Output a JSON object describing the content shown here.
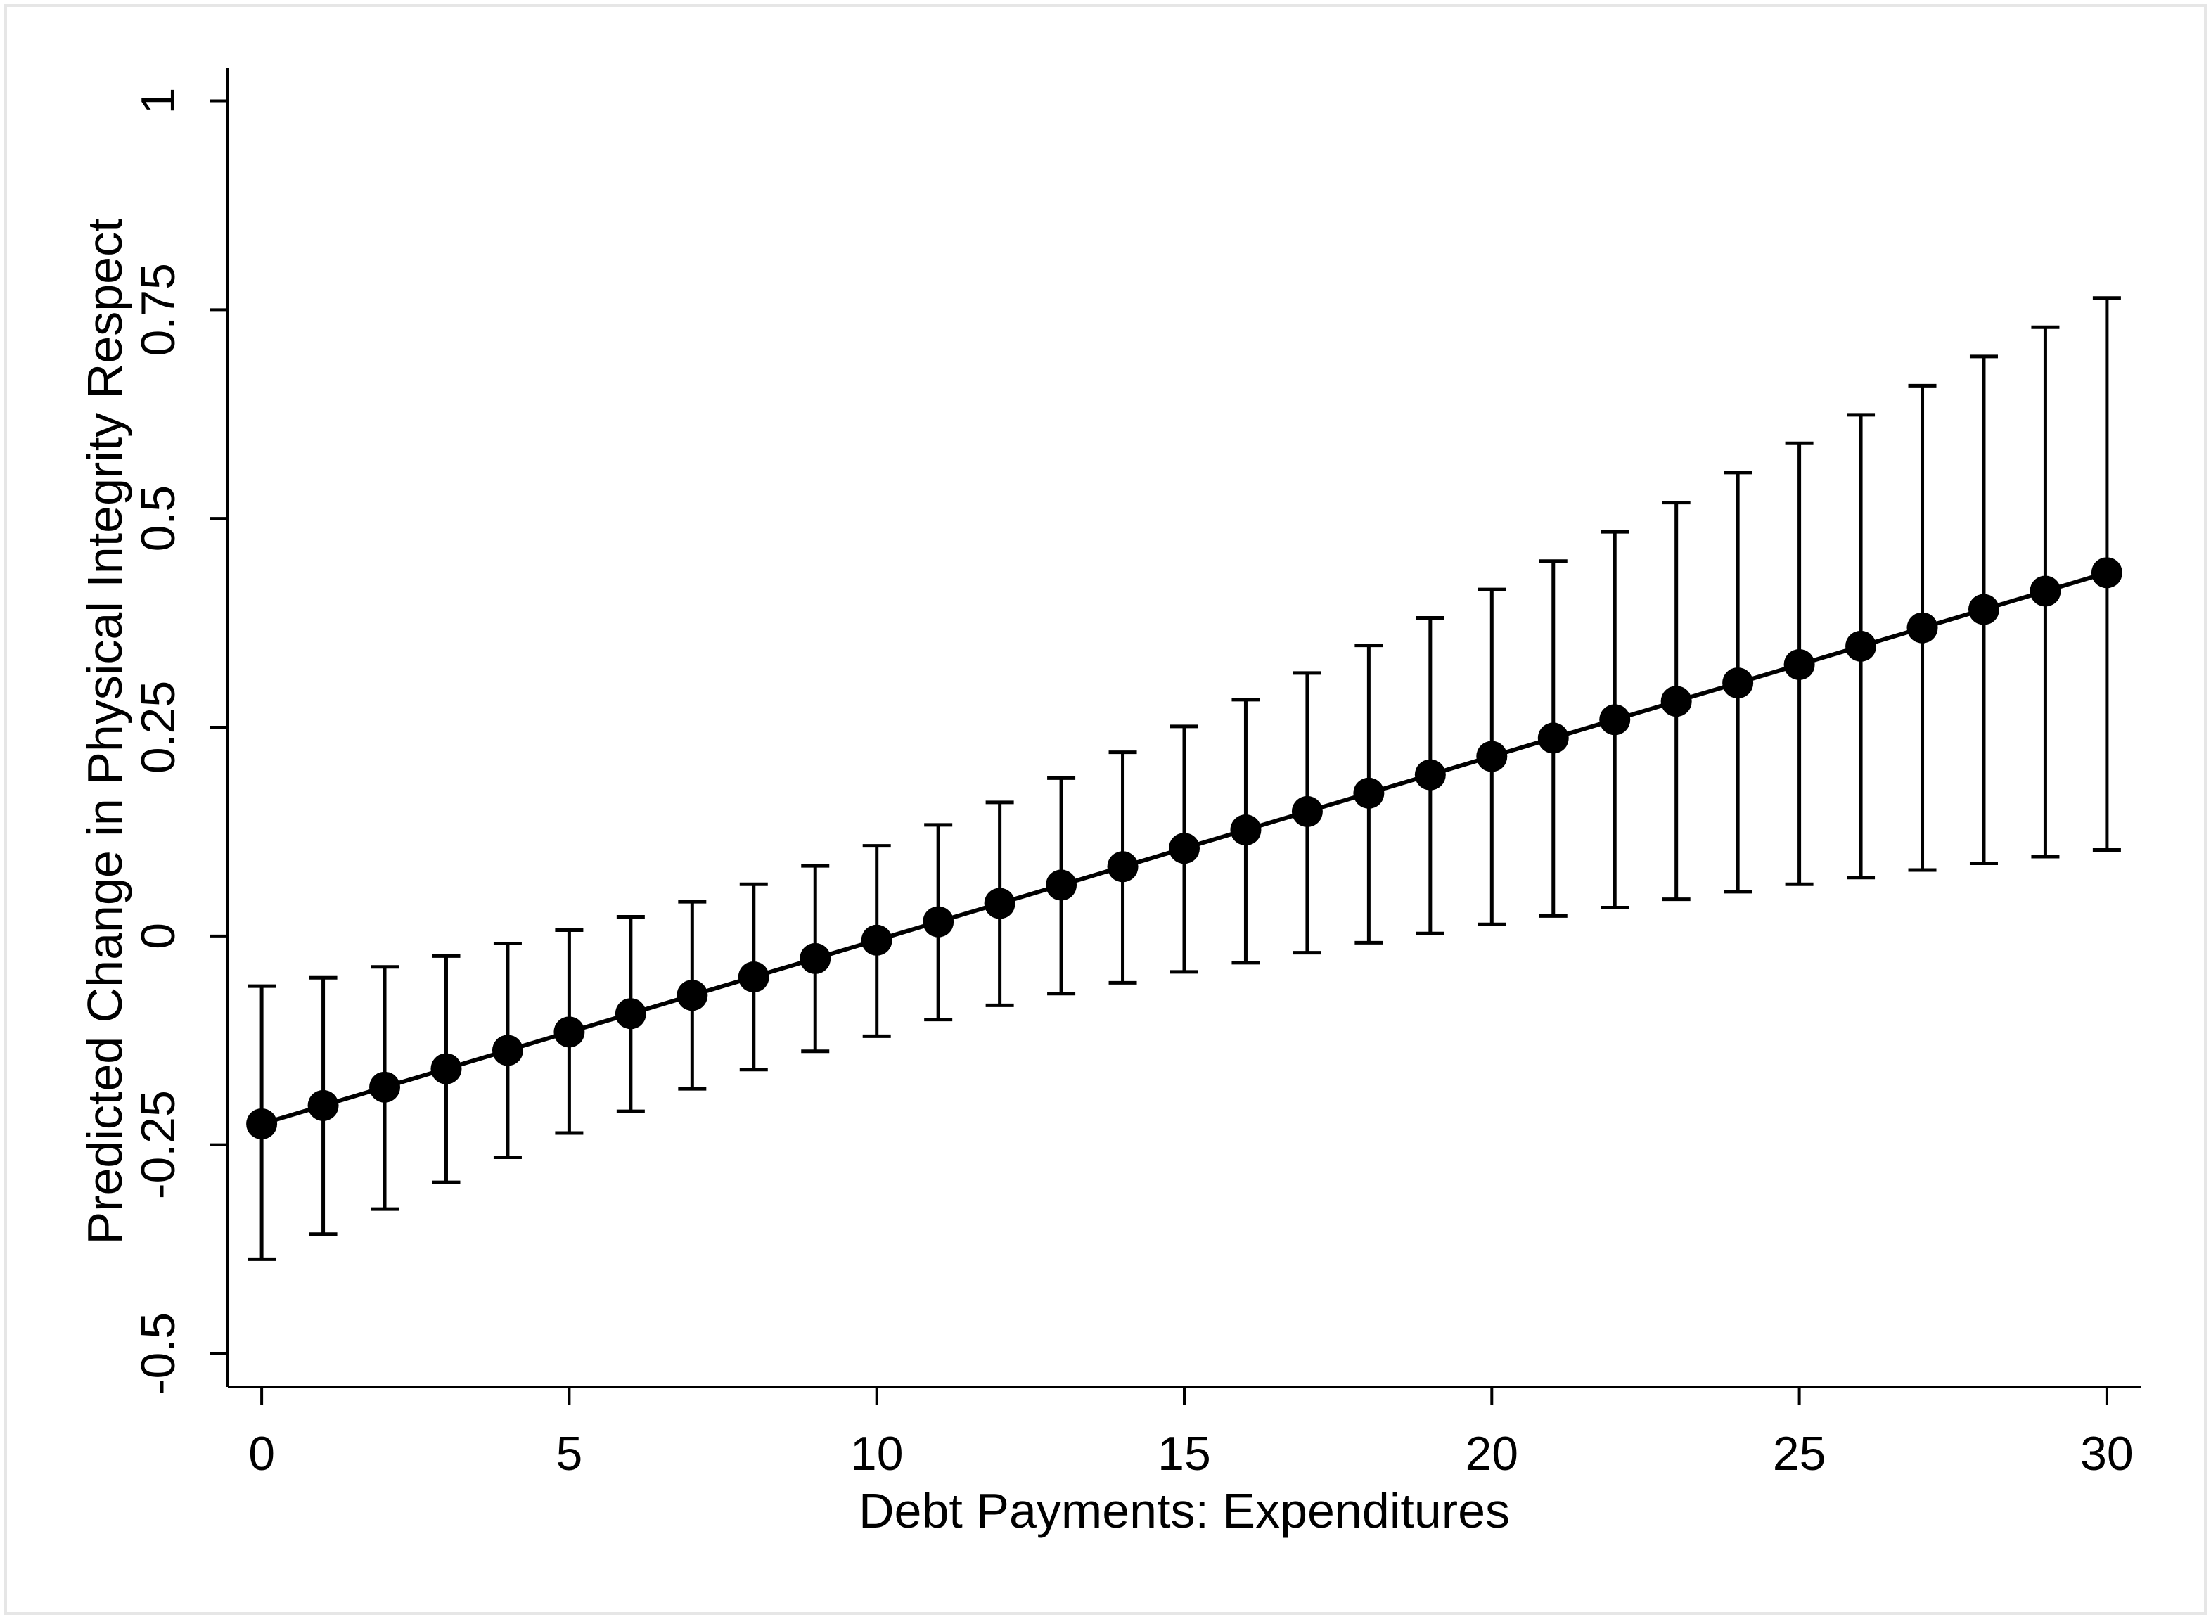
{
  "chart_data": {
    "type": "scatter",
    "xlabel": "Debt Payments: Expenditures",
    "ylabel": "Predicted Change in Physical Integrity Respect",
    "x_ticks": [
      "0",
      "5",
      "10",
      "15",
      "20",
      "25",
      "30"
    ],
    "y_ticks": [
      "-0.5",
      "-0.25",
      "0",
      "0.25",
      "0.5",
      "0.75",
      "1"
    ],
    "xlim": [
      -0.55,
      30.55
    ],
    "ylim": [
      -0.54,
      1.04
    ],
    "grid": false,
    "legend": "none",
    "colors": {
      "marker": "#000000",
      "line": "#000000",
      "axis": "#000000",
      "border": "#e6e6e6",
      "background": "#ffffff"
    },
    "series": [
      {
        "x": [
          0,
          1,
          2,
          3,
          4,
          5,
          6,
          7,
          8,
          9,
          10,
          11,
          12,
          13,
          14,
          15,
          16,
          17,
          18,
          19,
          20,
          21,
          22,
          23,
          24,
          25,
          26,
          27,
          28,
          29,
          30
        ],
        "y": [
          -0.225,
          -0.203,
          -0.181,
          -0.159,
          -0.137,
          -0.115,
          -0.093,
          -0.071,
          -0.049,
          -0.027,
          -0.005,
          0.017,
          0.039,
          0.061,
          0.083,
          0.105,
          0.127,
          0.149,
          0.171,
          0.193,
          0.215,
          0.237,
          0.259,
          0.281,
          0.303,
          0.325,
          0.347,
          0.369,
          0.391,
          0.413,
          0.435
        ],
        "ci_lower": [
          -0.387,
          -0.357,
          -0.327,
          -0.295,
          -0.265,
          -0.236,
          -0.21,
          -0.183,
          -0.16,
          -0.138,
          -0.12,
          -0.1,
          -0.083,
          -0.069,
          -0.056,
          -0.043,
          -0.032,
          -0.02,
          -0.008,
          0.003,
          0.014,
          0.024,
          0.034,
          0.044,
          0.053,
          0.062,
          0.07,
          0.079,
          0.087,
          0.095,
          0.103
        ],
        "ci_upper": [
          -0.06,
          -0.05,
          -0.037,
          -0.024,
          -0.009,
          0.007,
          0.023,
          0.041,
          0.062,
          0.084,
          0.108,
          0.133,
          0.16,
          0.189,
          0.22,
          0.251,
          0.283,
          0.315,
          0.348,
          0.381,
          0.415,
          0.449,
          0.484,
          0.519,
          0.555,
          0.59,
          0.624,
          0.659,
          0.694,
          0.729,
          0.764
        ]
      }
    ]
  }
}
